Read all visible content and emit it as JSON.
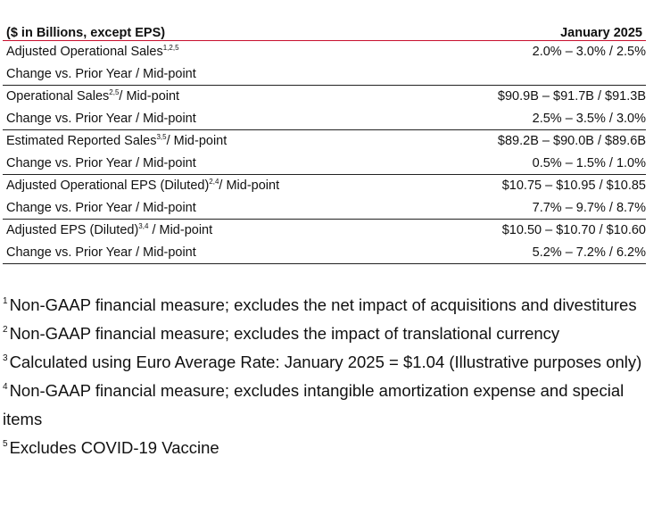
{
  "table": {
    "header_label": "($ in Billions, except EPS)",
    "header_period": "January 2025",
    "groups": [
      {
        "rows": [
          {
            "label": "Adjusted Operational Sales",
            "sup": "1,2,5",
            "suffix": "",
            "value": "2.0% – 3.0% / 2.5%"
          },
          {
            "label": "Change vs. Prior Year / Mid-point",
            "sup": "",
            "suffix": "",
            "value": ""
          }
        ]
      },
      {
        "rows": [
          {
            "label": "Operational Sales",
            "sup": "2,5",
            "suffix": "/ Mid-point",
            "value": "$90.9B – $91.7B / $91.3B"
          },
          {
            "label": "Change vs. Prior Year / Mid-point",
            "sup": "",
            "suffix": "",
            "value": "2.5% – 3.5% / 3.0%"
          }
        ]
      },
      {
        "rows": [
          {
            "label": "Estimated Reported Sales",
            "sup": "3,5",
            "suffix": "/ Mid-point",
            "value": "$89.2B – $90.0B / $89.6B"
          },
          {
            "label": "Change vs. Prior Year / Mid-point",
            "sup": "",
            "suffix": "",
            "value": "0.5% – 1.5% / 1.0%"
          }
        ]
      },
      {
        "rows": [
          {
            "label": "Adjusted Operational EPS (Diluted)",
            "sup": "2,4",
            "suffix": "/ Mid-point",
            "value": "$10.75 – $10.95 / $10.85"
          },
          {
            "label": "Change vs. Prior Year / Mid-point",
            "sup": "",
            "suffix": "",
            "value": "7.7% – 9.7% / 8.7%"
          }
        ]
      },
      {
        "rows": [
          {
            "label": "Adjusted EPS (Diluted)",
            "sup": "3,4",
            "suffix": " / Mid-point",
            "value": "$10.50 – $10.70 / $10.60"
          },
          {
            "label": "Change vs. Prior Year / Mid-point",
            "sup": "",
            "suffix": "",
            "value": "5.2% – 7.2% / 6.2%"
          }
        ]
      }
    ]
  },
  "footnotes": [
    {
      "num": "1",
      "text": "Non-GAAP financial measure; excludes the net impact of acquisitions and divestitures"
    },
    {
      "num": "2",
      "text": "Non-GAAP financial measure; excludes the impact of translational currency"
    },
    {
      "num": "3",
      "text": "Calculated using Euro Average Rate: January 2025 = $1.04 (Illustrative purposes only)"
    },
    {
      "num": "4",
      "text": "Non-GAAP financial measure; excludes intangible amortization expense and special items"
    },
    {
      "num": "5",
      "text": "Excludes COVID-19 Vaccine"
    }
  ]
}
